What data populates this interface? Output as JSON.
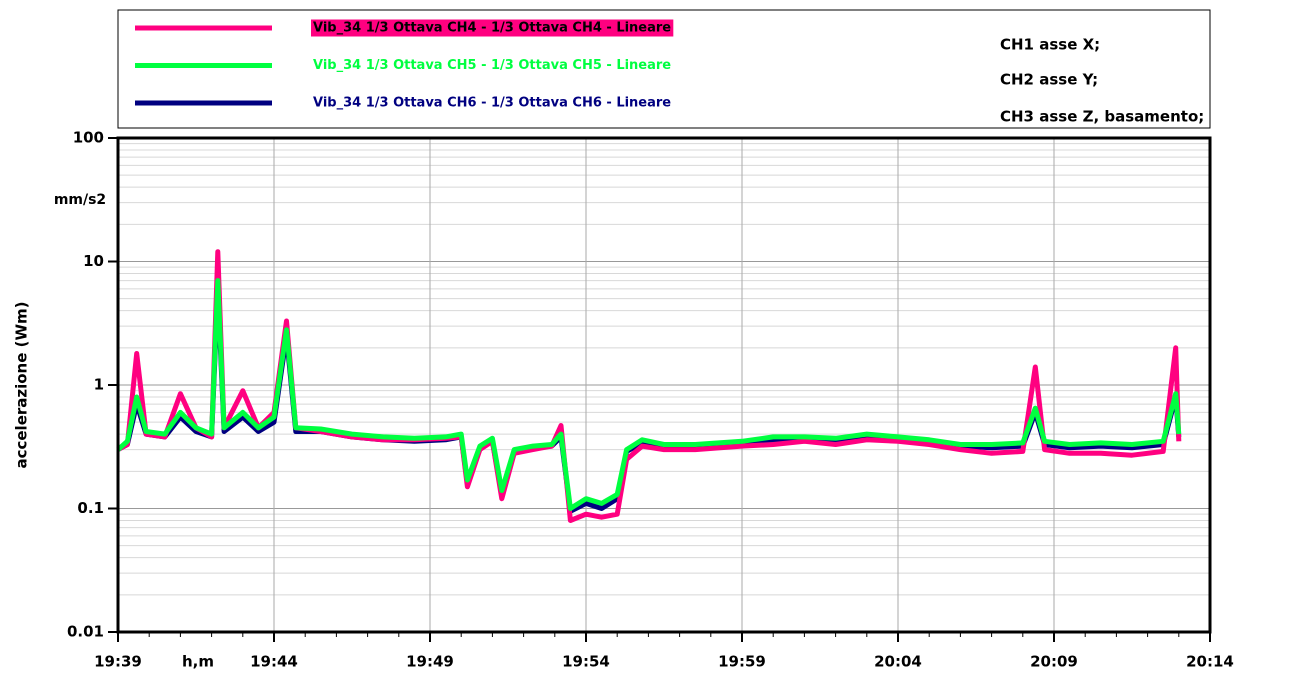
{
  "chart_data": {
    "type": "line",
    "ylabel": "accelerazione (Wm)",
    "xlabel": "h,m",
    "annotations": [
      "mm/s2",
      "CH1 asse X;",
      "CH2 asse Y;",
      "CH3 asse Z, basamento;"
    ],
    "log_y": true,
    "grid": true,
    "x": [
      0,
      0.3,
      0.6,
      0.9,
      1.5,
      2.0,
      2.5,
      3.0,
      3.2,
      3.4,
      4.0,
      4.5,
      5.0,
      5.4,
      5.7,
      6.5,
      7.5,
      8.5,
      9.5,
      10.5,
      11.0,
      11.2,
      11.6,
      12.0,
      12.3,
      12.7,
      13.3,
      13.9,
      14.2,
      14.5,
      15.0,
      15.5,
      16.0,
      16.3,
      16.8,
      17.5,
      18.5,
      20.0,
      21.0,
      22.0,
      23.0,
      24.0,
      25.0,
      26.0,
      27.0,
      28.0,
      29.0,
      29.4,
      29.7,
      30.5,
      31.5,
      32.5,
      33.5,
      33.9,
      34.0
    ],
    "xlim": [
      0,
      35
    ],
    "xticks": [
      {
        "value": 0,
        "label": "19:39"
      },
      {
        "value": 5,
        "label": "19:44"
      },
      {
        "value": 10,
        "label": "19:49"
      },
      {
        "value": 15,
        "label": "19:54"
      },
      {
        "value": 20,
        "label": "19:59"
      },
      {
        "value": 25,
        "label": "20:04"
      },
      {
        "value": 30,
        "label": "20:09"
      },
      {
        "value": 35,
        "label": "20:14"
      }
    ],
    "ylim": [
      0.01,
      100
    ],
    "yticks": [
      0.01,
      0.1,
      1,
      10,
      100
    ],
    "series": [
      {
        "name": "Vib_34 1/3 Ottava CH4 - 1/3 Ottava CH4 - Lineare",
        "color": "#ff0080",
        "values": [
          0.3,
          0.33,
          1.8,
          0.4,
          0.38,
          0.85,
          0.45,
          0.38,
          12,
          0.45,
          0.9,
          0.45,
          0.6,
          3.3,
          0.45,
          0.42,
          0.38,
          0.36,
          0.36,
          0.37,
          0.38,
          0.15,
          0.3,
          0.35,
          0.12,
          0.28,
          0.3,
          0.32,
          0.47,
          0.08,
          0.09,
          0.085,
          0.09,
          0.25,
          0.32,
          0.3,
          0.3,
          0.32,
          0.33,
          0.35,
          0.33,
          0.36,
          0.35,
          0.33,
          0.3,
          0.28,
          0.29,
          1.4,
          0.3,
          0.28,
          0.28,
          0.27,
          0.29,
          2.0,
          0.35
        ]
      },
      {
        "name": "Vib_34 1/3 Ottava CH5 - 1/3 Ottava CH5 - Lineare",
        "color": "#00ff40",
        "values": [
          0.3,
          0.35,
          0.8,
          0.42,
          0.4,
          0.6,
          0.45,
          0.4,
          7,
          0.45,
          0.6,
          0.45,
          0.55,
          2.8,
          0.45,
          0.44,
          0.4,
          0.38,
          0.37,
          0.38,
          0.4,
          0.17,
          0.32,
          0.37,
          0.14,
          0.3,
          0.32,
          0.33,
          0.4,
          0.1,
          0.12,
          0.11,
          0.13,
          0.3,
          0.36,
          0.33,
          0.33,
          0.35,
          0.38,
          0.38,
          0.37,
          0.4,
          0.38,
          0.36,
          0.33,
          0.33,
          0.34,
          0.65,
          0.35,
          0.33,
          0.34,
          0.33,
          0.35,
          0.85,
          0.4
        ]
      },
      {
        "name": "Vib_34 1/3 Ottava CH6 - 1/3 Ottava CH6 - Lineare",
        "color": "#000080",
        "values": [
          0.3,
          0.33,
          0.7,
          0.4,
          0.38,
          0.55,
          0.42,
          0.38,
          6,
          0.42,
          0.55,
          0.42,
          0.5,
          2.5,
          0.42,
          0.42,
          0.38,
          0.36,
          0.35,
          0.36,
          0.38,
          0.16,
          0.31,
          0.35,
          0.13,
          0.29,
          0.31,
          0.32,
          0.38,
          0.095,
          0.11,
          0.1,
          0.12,
          0.29,
          0.34,
          0.32,
          0.32,
          0.34,
          0.36,
          0.36,
          0.35,
          0.38,
          0.36,
          0.34,
          0.32,
          0.31,
          0.32,
          0.6,
          0.33,
          0.31,
          0.32,
          0.31,
          0.33,
          0.8,
          0.38
        ]
      }
    ]
  }
}
